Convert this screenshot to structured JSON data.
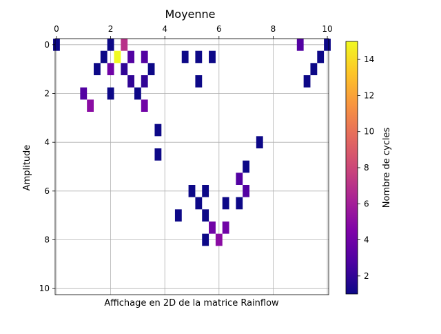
{
  "chart_data": {
    "type": "heatmap",
    "title": "Moyenne",
    "xlabel": "Affichage en 2D de la matrice Rainflow",
    "ylabel": "Amplitude",
    "colorbar_label": "Nombre de cycles",
    "colormap": "plasma",
    "x_axis_position": "top",
    "y_inverted": true,
    "grid": true,
    "xlim": [
      -0.05,
      10.05
    ],
    "ylim": [
      10.25,
      -0.25
    ],
    "x_ticks": [
      0,
      2,
      4,
      6,
      8,
      10
    ],
    "y_ticks": [
      0,
      2,
      4,
      6,
      8,
      10
    ],
    "colorbar_range": [
      1,
      15
    ],
    "colorbar_ticks": [
      2,
      4,
      6,
      8,
      10,
      12,
      14
    ],
    "cell_size": [
      0.25,
      0.5
    ],
    "cells": [
      {
        "x": 0.0,
        "y": 0.0,
        "value": 1
      },
      {
        "x": 2.0,
        "y": 0.0,
        "value": 1
      },
      {
        "x": 2.5,
        "y": 0.0,
        "value": 7
      },
      {
        "x": 9.0,
        "y": 0.0,
        "value": 3
      },
      {
        "x": 10.0,
        "y": 0.0,
        "value": 1
      },
      {
        "x": 1.75,
        "y": 0.5,
        "value": 1
      },
      {
        "x": 2.25,
        "y": 0.5,
        "value": 15
      },
      {
        "x": 2.75,
        "y": 0.5,
        "value": 3
      },
      {
        "x": 3.25,
        "y": 0.5,
        "value": 3
      },
      {
        "x": 4.75,
        "y": 0.5,
        "value": 1
      },
      {
        "x": 5.25,
        "y": 0.5,
        "value": 1
      },
      {
        "x": 5.75,
        "y": 0.5,
        "value": 1
      },
      {
        "x": 9.75,
        "y": 0.5,
        "value": 1
      },
      {
        "x": 1.5,
        "y": 1.0,
        "value": 1
      },
      {
        "x": 2.0,
        "y": 1.0,
        "value": 4
      },
      {
        "x": 2.5,
        "y": 1.0,
        "value": 2
      },
      {
        "x": 3.5,
        "y": 1.0,
        "value": 1
      },
      {
        "x": 9.5,
        "y": 1.0,
        "value": 1
      },
      {
        "x": 2.75,
        "y": 1.5,
        "value": 2
      },
      {
        "x": 3.25,
        "y": 1.5,
        "value": 2
      },
      {
        "x": 5.25,
        "y": 1.5,
        "value": 1
      },
      {
        "x": 9.25,
        "y": 1.5,
        "value": 1
      },
      {
        "x": 1.0,
        "y": 2.0,
        "value": 3
      },
      {
        "x": 2.0,
        "y": 2.0,
        "value": 1
      },
      {
        "x": 3.0,
        "y": 2.0,
        "value": 1
      },
      {
        "x": 1.25,
        "y": 2.5,
        "value": 5
      },
      {
        "x": 3.25,
        "y": 2.5,
        "value": 4
      },
      {
        "x": 3.75,
        "y": 3.5,
        "value": 1
      },
      {
        "x": 7.5,
        "y": 4.0,
        "value": 1
      },
      {
        "x": 3.75,
        "y": 4.5,
        "value": 1
      },
      {
        "x": 7.0,
        "y": 5.0,
        "value": 1
      },
      {
        "x": 6.75,
        "y": 5.5,
        "value": 3
      },
      {
        "x": 5.0,
        "y": 6.0,
        "value": 1
      },
      {
        "x": 5.5,
        "y": 6.0,
        "value": 1
      },
      {
        "x": 7.0,
        "y": 6.0,
        "value": 3
      },
      {
        "x": 5.25,
        "y": 6.5,
        "value": 1
      },
      {
        "x": 6.25,
        "y": 6.5,
        "value": 1
      },
      {
        "x": 6.75,
        "y": 6.5,
        "value": 1
      },
      {
        "x": 4.5,
        "y": 7.0,
        "value": 1
      },
      {
        "x": 5.5,
        "y": 7.0,
        "value": 1
      },
      {
        "x": 5.75,
        "y": 7.5,
        "value": 4
      },
      {
        "x": 6.25,
        "y": 7.5,
        "value": 4
      },
      {
        "x": 5.5,
        "y": 8.0,
        "value": 1
      },
      {
        "x": 6.0,
        "y": 8.0,
        "value": 5
      }
    ]
  }
}
